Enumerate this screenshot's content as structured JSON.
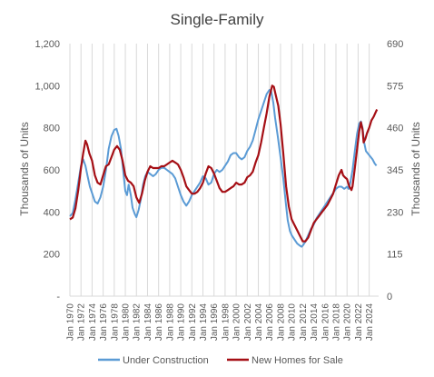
{
  "chart_data": {
    "type": "line",
    "title": "Single-Family",
    "ylabel_left": "Thousands of Units",
    "ylabel_right": "Thousands of Units",
    "y_left": {
      "range": [
        0,
        1200
      ],
      "ticks": [
        0,
        200,
        400,
        600,
        800,
        1000,
        1200
      ],
      "tick_labels": [
        "-",
        "200",
        "400",
        "600",
        "800",
        "1,000",
        "1,200"
      ]
    },
    "y_right": {
      "range": [
        0,
        690
      ],
      "ticks": [
        0,
        115,
        230,
        345,
        460,
        575,
        690
      ],
      "tick_labels": [
        "0",
        "115",
        "230",
        "345",
        "460",
        "575",
        "690"
      ]
    },
    "x": {
      "range": [
        1970,
        2025.7
      ],
      "ticks": [
        1970,
        1972,
        1974,
        1976,
        1978,
        1980,
        1982,
        1984,
        1986,
        1988,
        1990,
        1992,
        1994,
        1996,
        1998,
        2000,
        2002,
        2004,
        2006,
        2008,
        2010,
        2012,
        2014,
        2016,
        2018,
        2020,
        2022,
        2024
      ],
      "tick_labels": [
        "Jan 1970",
        "Jan 1972",
        "Jan 1974",
        "Jan 1976",
        "Jan 1978",
        "Jan 1980",
        "Jan 1982",
        "Jan 1984",
        "Jan 1986",
        "Jan 1988",
        "Jan 1990",
        "Jan 1992",
        "Jan 1994",
        "Jan 1996",
        "Jan 1998",
        "Jan 2000",
        "Jan 2002",
        "Jan 2004",
        "Jan 2006",
        "Jan 2008",
        "Jan 2010",
        "Jan 2012",
        "Jan 2014",
        "Jan 2016",
        "Jan 2018",
        "Jan 2020",
        "Jan 2022",
        "Jan 2024"
      ]
    },
    "grid": "vertical",
    "legend": "bottom",
    "series": [
      {
        "name": "Under Construction",
        "axis": "left",
        "color": "#5b9bd5",
        "points": [
          [
            1970.0,
            380
          ],
          [
            1970.5,
            395
          ],
          [
            1971.0,
            460
          ],
          [
            1971.5,
            540
          ],
          [
            1972.0,
            620
          ],
          [
            1972.4,
            650
          ],
          [
            1972.8,
            620
          ],
          [
            1973.2,
            570
          ],
          [
            1973.6,
            520
          ],
          [
            1974.0,
            490
          ],
          [
            1974.5,
            450
          ],
          [
            1975.0,
            440
          ],
          [
            1975.5,
            470
          ],
          [
            1976.0,
            520
          ],
          [
            1976.5,
            600
          ],
          [
            1977.0,
            700
          ],
          [
            1977.5,
            760
          ],
          [
            1978.0,
            790
          ],
          [
            1978.4,
            795
          ],
          [
            1978.8,
            760
          ],
          [
            1979.2,
            700
          ],
          [
            1979.6,
            600
          ],
          [
            1980.0,
            500
          ],
          [
            1980.3,
            480
          ],
          [
            1980.6,
            530
          ],
          [
            1981.0,
            480
          ],
          [
            1981.3,
            420
          ],
          [
            1981.7,
            390
          ],
          [
            1982.0,
            375
          ],
          [
            1982.4,
            410
          ],
          [
            1982.8,
            460
          ],
          [
            1983.2,
            530
          ],
          [
            1983.6,
            570
          ],
          [
            1984.0,
            590
          ],
          [
            1984.5,
            580
          ],
          [
            1985.0,
            570
          ],
          [
            1985.5,
            580
          ],
          [
            1986.0,
            600
          ],
          [
            1986.5,
            610
          ],
          [
            1987.0,
            610
          ],
          [
            1987.5,
            600
          ],
          [
            1988.0,
            590
          ],
          [
            1988.5,
            580
          ],
          [
            1989.0,
            560
          ],
          [
            1989.5,
            520
          ],
          [
            1990.0,
            480
          ],
          [
            1990.5,
            450
          ],
          [
            1991.0,
            430
          ],
          [
            1991.5,
            450
          ],
          [
            1992.0,
            480
          ],
          [
            1992.5,
            500
          ],
          [
            1993.0,
            520
          ],
          [
            1993.5,
            540
          ],
          [
            1994.0,
            570
          ],
          [
            1994.5,
            560
          ],
          [
            1995.0,
            530
          ],
          [
            1995.5,
            540
          ],
          [
            1996.0,
            580
          ],
          [
            1996.5,
            600
          ],
          [
            1997.0,
            590
          ],
          [
            1997.5,
            600
          ],
          [
            1998.0,
            620
          ],
          [
            1998.5,
            640
          ],
          [
            1999.0,
            670
          ],
          [
            1999.5,
            680
          ],
          [
            2000.0,
            680
          ],
          [
            2000.5,
            660
          ],
          [
            2001.0,
            650
          ],
          [
            2001.5,
            660
          ],
          [
            2002.0,
            690
          ],
          [
            2002.5,
            710
          ],
          [
            2003.0,
            740
          ],
          [
            2003.5,
            790
          ],
          [
            2004.0,
            840
          ],
          [
            2004.5,
            880
          ],
          [
            2005.0,
            920
          ],
          [
            2005.5,
            960
          ],
          [
            2006.0,
            980
          ],
          [
            2006.3,
            975
          ],
          [
            2006.7,
            920
          ],
          [
            2007.0,
            850
          ],
          [
            2007.5,
            760
          ],
          [
            2008.0,
            660
          ],
          [
            2008.5,
            560
          ],
          [
            2009.0,
            430
          ],
          [
            2009.3,
            360
          ],
          [
            2009.7,
            310
          ],
          [
            2010.0,
            290
          ],
          [
            2010.5,
            270
          ],
          [
            2011.0,
            250
          ],
          [
            2011.5,
            240
          ],
          [
            2011.8,
            235
          ],
          [
            2012.0,
            240
          ],
          [
            2012.5,
            260
          ],
          [
            2013.0,
            290
          ],
          [
            2013.5,
            320
          ],
          [
            2014.0,
            340
          ],
          [
            2014.5,
            370
          ],
          [
            2015.0,
            390
          ],
          [
            2015.5,
            410
          ],
          [
            2016.0,
            430
          ],
          [
            2016.5,
            450
          ],
          [
            2017.0,
            470
          ],
          [
            2017.5,
            490
          ],
          [
            2018.0,
            510
          ],
          [
            2018.5,
            520
          ],
          [
            2019.0,
            520
          ],
          [
            2019.5,
            510
          ],
          [
            2020.0,
            520
          ],
          [
            2020.3,
            510
          ],
          [
            2020.6,
            540
          ],
          [
            2021.0,
            600
          ],
          [
            2021.4,
            690
          ],
          [
            2021.8,
            770
          ],
          [
            2022.2,
            820
          ],
          [
            2022.5,
            830
          ],
          [
            2022.8,
            800
          ],
          [
            2023.1,
            730
          ],
          [
            2023.4,
            690
          ],
          [
            2023.7,
            680
          ],
          [
            2024.0,
            670
          ],
          [
            2024.3,
            660
          ],
          [
            2024.6,
            650
          ],
          [
            2025.0,
            630
          ],
          [
            2025.3,
            620
          ]
        ]
      },
      {
        "name": "New Homes for Sale",
        "axis": "right",
        "color": "#a50f15",
        "points": [
          [
            1970.0,
            210
          ],
          [
            1970.5,
            215
          ],
          [
            1971.0,
            240
          ],
          [
            1971.5,
            290
          ],
          [
            1972.0,
            350
          ],
          [
            1972.4,
            390
          ],
          [
            1972.8,
            425
          ],
          [
            1973.1,
            415
          ],
          [
            1973.5,
            390
          ],
          [
            1974.0,
            370
          ],
          [
            1974.5,
            330
          ],
          [
            1975.0,
            310
          ],
          [
            1975.5,
            305
          ],
          [
            1976.0,
            330
          ],
          [
            1976.5,
            355
          ],
          [
            1977.0,
            360
          ],
          [
            1977.5,
            380
          ],
          [
            1978.0,
            400
          ],
          [
            1978.5,
            410
          ],
          [
            1979.0,
            400
          ],
          [
            1979.5,
            370
          ],
          [
            1980.0,
            330
          ],
          [
            1980.5,
            315
          ],
          [
            1981.0,
            310
          ],
          [
            1981.5,
            300
          ],
          [
            1982.0,
            270
          ],
          [
            1982.5,
            255
          ],
          [
            1983.0,
            280
          ],
          [
            1983.5,
            315
          ],
          [
            1984.0,
            340
          ],
          [
            1984.5,
            355
          ],
          [
            1985.0,
            350
          ],
          [
            1985.5,
            350
          ],
          [
            1986.0,
            350
          ],
          [
            1986.5,
            355
          ],
          [
            1987.0,
            355
          ],
          [
            1987.5,
            360
          ],
          [
            1988.0,
            365
          ],
          [
            1988.5,
            370
          ],
          [
            1989.0,
            365
          ],
          [
            1989.5,
            360
          ],
          [
            1990.0,
            345
          ],
          [
            1990.5,
            325
          ],
          [
            1991.0,
            300
          ],
          [
            1991.5,
            290
          ],
          [
            1992.0,
            280
          ],
          [
            1992.5,
            280
          ],
          [
            1993.0,
            285
          ],
          [
            1993.5,
            295
          ],
          [
            1994.0,
            310
          ],
          [
            1994.5,
            335
          ],
          [
            1995.0,
            355
          ],
          [
            1995.5,
            350
          ],
          [
            1996.0,
            335
          ],
          [
            1996.5,
            315
          ],
          [
            1997.0,
            295
          ],
          [
            1997.5,
            285
          ],
          [
            1998.0,
            285
          ],
          [
            1998.5,
            290
          ],
          [
            1999.0,
            295
          ],
          [
            1999.5,
            300
          ],
          [
            2000.0,
            310
          ],
          [
            2000.5,
            305
          ],
          [
            2001.0,
            305
          ],
          [
            2001.5,
            310
          ],
          [
            2002.0,
            325
          ],
          [
            2002.5,
            330
          ],
          [
            2003.0,
            340
          ],
          [
            2003.5,
            365
          ],
          [
            2004.0,
            385
          ],
          [
            2004.5,
            420
          ],
          [
            2005.0,
            460
          ],
          [
            2005.5,
            500
          ],
          [
            2006.0,
            545
          ],
          [
            2006.5,
            575
          ],
          [
            2006.8,
            572
          ],
          [
            2007.2,
            545
          ],
          [
            2007.6,
            520
          ],
          [
            2008.0,
            470
          ],
          [
            2008.5,
            390
          ],
          [
            2009.0,
            300
          ],
          [
            2009.5,
            245
          ],
          [
            2010.0,
            210
          ],
          [
            2010.5,
            195
          ],
          [
            2011.0,
            180
          ],
          [
            2011.5,
            165
          ],
          [
            2012.0,
            150
          ],
          [
            2012.5,
            150
          ],
          [
            2013.0,
            160
          ],
          [
            2013.5,
            180
          ],
          [
            2014.0,
            200
          ],
          [
            2014.5,
            210
          ],
          [
            2015.0,
            220
          ],
          [
            2015.5,
            230
          ],
          [
            2016.0,
            240
          ],
          [
            2016.5,
            250
          ],
          [
            2017.0,
            265
          ],
          [
            2017.5,
            280
          ],
          [
            2018.0,
            305
          ],
          [
            2018.5,
            330
          ],
          [
            2019.0,
            345
          ],
          [
            2019.3,
            330
          ],
          [
            2019.6,
            325
          ],
          [
            2020.0,
            320
          ],
          [
            2020.4,
            300
          ],
          [
            2020.8,
            290
          ],
          [
            2021.0,
            300
          ],
          [
            2021.4,
            350
          ],
          [
            2021.8,
            400
          ],
          [
            2022.2,
            450
          ],
          [
            2022.5,
            475
          ],
          [
            2022.8,
            455
          ],
          [
            2023.0,
            420
          ],
          [
            2023.3,
            430
          ],
          [
            2023.6,
            445
          ],
          [
            2024.0,
            460
          ],
          [
            2024.4,
            480
          ],
          [
            2024.8,
            490
          ],
          [
            2025.1,
            500
          ],
          [
            2025.4,
            510
          ]
        ]
      }
    ]
  }
}
